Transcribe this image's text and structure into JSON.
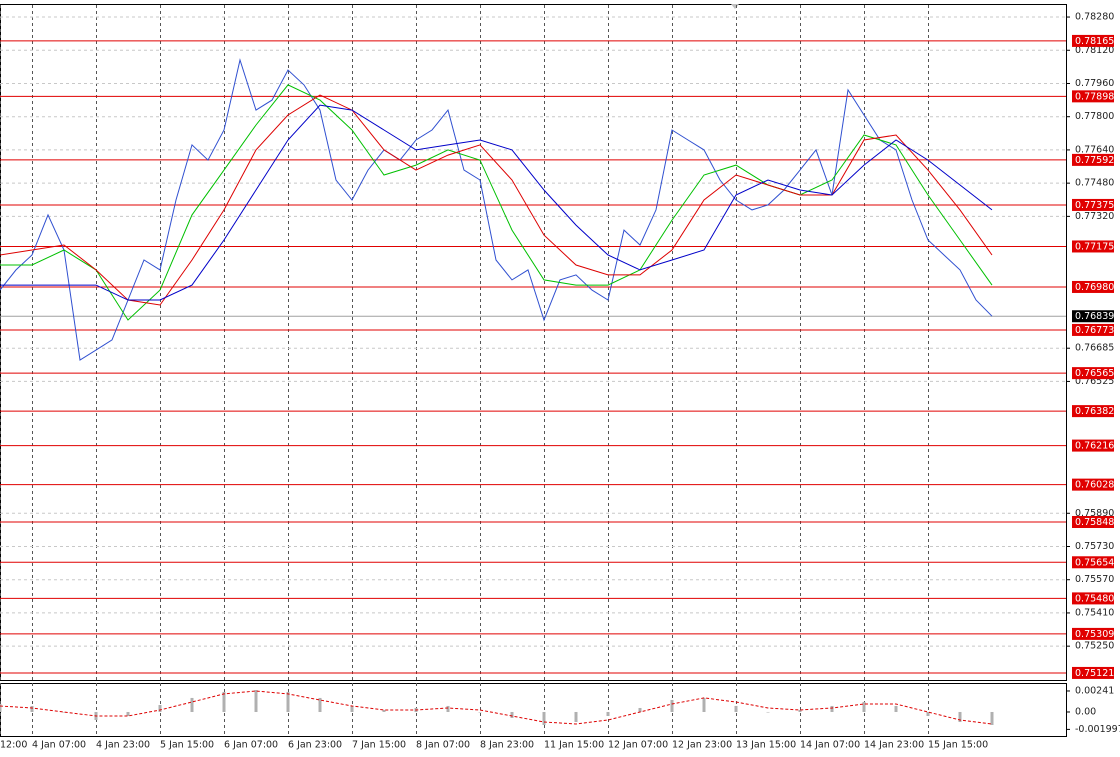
{
  "chart_data": [
    {
      "type": "line",
      "xlim": [
        0,
        266.5
      ],
      "ylim": [
        0.78338,
        0.75087
      ],
      "yticks": [
        {
          "value": 0.7828,
          "label": "0.78280"
        },
        {
          "value": 0.7812,
          "label": "0.78120"
        },
        {
          "value": 0.7796,
          "label": "0.77960"
        },
        {
          "value": 0.778,
          "label": "0.77800"
        },
        {
          "value": 0.7764,
          "label": "0.77640"
        },
        {
          "value": 0.7748,
          "label": "0.77480"
        },
        {
          "value": 0.7732,
          "label": "0.77320"
        },
        0.76685,
        0.76525,
        {
          "value": 0.7589,
          "label": "0.75890"
        },
        {
          "value": 0.7573,
          "label": "0.75730"
        },
        {
          "value": 0.7557,
          "label": "0.75570"
        },
        {
          "value": 0.7541,
          "label": "0.75410"
        },
        {
          "value": 0.7525,
          "label": "0.75250"
        }
      ],
      "xticks": [
        {
          "value": 0,
          "label": "12:00"
        },
        {
          "value": 8,
          "label": "4 Jan 07:00"
        },
        {
          "value": 24,
          "label": "4 Jan 23:00"
        },
        {
          "value": 40,
          "label": "5 Jan 15:00"
        },
        {
          "value": 56,
          "label": "6 Jan 07:00"
        },
        {
          "value": 72,
          "label": "6 Jan 23:00"
        },
        {
          "value": 88,
          "label": "7 Jan 15:00"
        },
        {
          "value": 104,
          "label": "8 Jan 07:00"
        },
        {
          "value": 120,
          "label": "8 Jan 23:00"
        },
        {
          "value": 136,
          "label": "11 Jan 15:00"
        },
        {
          "value": 152,
          "label": "12 Jan 07:00"
        },
        {
          "value": 168,
          "label": "12 Jan 23:00"
        },
        {
          "value": 184,
          "label": "13 Jan 15:00"
        },
        {
          "value": 200,
          "label": "14 Jan 07:00"
        },
        {
          "value": 216,
          "label": "14 Jan 23:00"
        },
        {
          "value": 232,
          "label": "15 Jan 15:00"
        }
      ],
      "grid": true,
      "hlines": [
        0.78165,
        {
          "value": 0.77898,
          "label": "0.77898"
        },
        0.77592,
        0.77375,
        0.77175,
        {
          "value": 0.7698,
          "label": "0.76980"
        },
        0.76773,
        0.76565,
        0.76382,
        0.76216,
        {
          "value": 0.76028,
          "label": "0.76028"
        },
        0.75848,
        0.75654,
        {
          "value": 0.7548,
          "label": "0.75480"
        },
        0.75309,
        0.75121
      ],
      "hline_color": "#e00000",
      "last_price": 0.76839,
      "series": [
        {
          "color": "#3050d0",
          "x": [
            0,
            4,
            8,
            12,
            16,
            20,
            24,
            28,
            32,
            36,
            40,
            44,
            48,
            52,
            56,
            60,
            64,
            68,
            72,
            76,
            80,
            84,
            88,
            92,
            96,
            100,
            104,
            108,
            112,
            116,
            120,
            124,
            128,
            132,
            136,
            140,
            144,
            148,
            152,
            156,
            160,
            164,
            168,
            172,
            176,
            180,
            184,
            188,
            192,
            196,
            200,
            204,
            208,
            212,
            216,
            220,
            224,
            228,
            232,
            236,
            240,
            244,
            248
          ],
          "values": [
            0.76965,
            0.77062,
            0.77134,
            0.77327,
            0.77158,
            0.76628,
            0.76676,
            0.76725,
            0.76917,
            0.7711,
            0.77062,
            0.77399,
            0.77664,
            0.77591,
            0.77736,
            0.78073,
            0.77832,
            0.7788,
            0.78025,
            0.77953,
            0.77832,
            0.77495,
            0.77399,
            0.77543,
            0.7764,
            0.77591,
            0.77688,
            0.77736,
            0.77832,
            0.77543,
            0.77495,
            0.7711,
            0.77014,
            0.77062,
            0.76821,
            0.77014,
            0.77038,
            0.76965,
            0.76917,
            0.77254,
            0.77182,
            0.77351,
            0.77736,
            0.77688,
            0.7764,
            0.77495,
            0.77399,
            0.77351,
            0.77375,
            0.77447,
            0.77543,
            0.7764,
            0.77423,
            0.77929,
            0.77808,
            0.77688,
            0.7764,
            0.77399,
            0.77206,
            0.77134,
            0.77062,
            0.76917,
            0.76839
          ]
        },
        {
          "color": "#00c000",
          "x": [
            0,
            8,
            16,
            24,
            32,
            40,
            48,
            56,
            64,
            72,
            80,
            88,
            96,
            104,
            112,
            120,
            128,
            136,
            144,
            152,
            160,
            168,
            176,
            184,
            192,
            200,
            208,
            216,
            224,
            232,
            240,
            248
          ],
          "values": [
            0.77086,
            0.77086,
            0.77158,
            0.77062,
            0.76821,
            0.76965,
            0.77327,
            0.77543,
            0.7776,
            0.77953,
            0.7788,
            0.77736,
            0.77519,
            0.77567,
            0.7764,
            0.77591,
            0.77254,
            0.77014,
            0.76989,
            0.76989,
            0.77062,
            0.77302,
            0.77519,
            0.77567,
            0.77471,
            0.77423,
            0.77495,
            0.77712,
            0.77664,
            0.77423,
            0.77206,
            0.76989
          ]
        },
        {
          "color": "#dd0000",
          "x": [
            0,
            8,
            16,
            24,
            32,
            40,
            48,
            56,
            64,
            72,
            80,
            88,
            96,
            104,
            112,
            120,
            128,
            136,
            144,
            152,
            160,
            168,
            176,
            184,
            192,
            200,
            208,
            216,
            224,
            232,
            240,
            248
          ],
          "values": [
            0.77134,
            0.77158,
            0.77182,
            0.77062,
            0.76917,
            0.76893,
            0.7711,
            0.77351,
            0.7764,
            0.77808,
            0.77904,
            0.77832,
            0.7764,
            0.77543,
            0.77615,
            0.77664,
            0.77495,
            0.7723,
            0.77086,
            0.77038,
            0.77038,
            0.77158,
            0.77399,
            0.77519,
            0.77471,
            0.77423,
            0.77423,
            0.77688,
            0.77712,
            0.77543,
            0.77351,
            0.77134
          ]
        },
        {
          "color": "#0000c8",
          "x": [
            0,
            8,
            16,
            24,
            32,
            40,
            48,
            56,
            64,
            72,
            80,
            88,
            96,
            104,
            112,
            120,
            128,
            136,
            144,
            152,
            160,
            168,
            176,
            184,
            192,
            200,
            208,
            216,
            224,
            232,
            240,
            248
          ],
          "values": [
            0.76989,
            0.76989,
            0.76989,
            0.76989,
            0.76917,
            0.76917,
            0.76989,
            0.77206,
            0.77447,
            0.77688,
            0.77856,
            0.77832,
            0.77736,
            0.7764,
            0.77664,
            0.77688,
            0.7764,
            0.77447,
            0.77278,
            0.77134,
            0.77062,
            0.7711,
            0.77158,
            0.77423,
            0.77495,
            0.77447,
            0.77423,
            0.77567,
            0.77688,
            0.77591,
            0.77471,
            0.77351
          ]
        }
      ]
    },
    {
      "type": "bar",
      "xlim": [
        0,
        266.5
      ],
      "ylim": [
        0.00321,
        -0.00287
      ],
      "yticks": [
        0.00241,
        {
          "value": 0,
          "label": "0.00"
        },
        -0.001997
      ],
      "series": [
        {
          "color": "#b0b0b0",
          "x": [
            0,
            8,
            16,
            24,
            32,
            40,
            48,
            56,
            64,
            72,
            80,
            88,
            96,
            104,
            112,
            120,
            128,
            136,
            144,
            152,
            160,
            168,
            176,
            184,
            192,
            200,
            208,
            216,
            224,
            232,
            240,
            248
          ],
          "values": [
            0.00092,
            0.00069,
            0,
            -0.00092,
            -0.00046,
            0.0008,
            0.00161,
            0.0023,
            0.00252,
            0.0023,
            0.00161,
            0.00069,
            0.00023,
            0.00046,
            0.00069,
            0,
            -0.00069,
            -0.00149,
            -0.00115,
            -0.00046,
            0.00046,
            0.00138,
            0.00161,
            0.00069,
            0,
            0.00023,
            0.00069,
            0.00115,
            0.00069,
            -0.00046,
            -0.00115,
            -0.00149
          ]
        },
        {
          "color": "#dd0000",
          "style": "dashed",
          "x": [
            0,
            8,
            16,
            24,
            32,
            40,
            48,
            56,
            64,
            72,
            80,
            88,
            96,
            104,
            112,
            120,
            128,
            136,
            144,
            152,
            160,
            168,
            176,
            184,
            192,
            200,
            208,
            216,
            224,
            232,
            240,
            248
          ],
          "values": [
            0.00069,
            0.00046,
            0,
            -0.00046,
            -0.00046,
            0.00023,
            0.00115,
            0.00207,
            0.00241,
            0.00207,
            0.00138,
            0.00069,
            0.00023,
            0.00023,
            0.00046,
            0.00023,
            -0.00046,
            -0.00115,
            -0.00138,
            -0.00092,
            0,
            0.00092,
            0.00161,
            0.00115,
            0.00046,
            0.00023,
            0.00046,
            0.00092,
            0.00092,
            0,
            -0.00092,
            -0.00138
          ]
        }
      ]
    }
  ]
}
